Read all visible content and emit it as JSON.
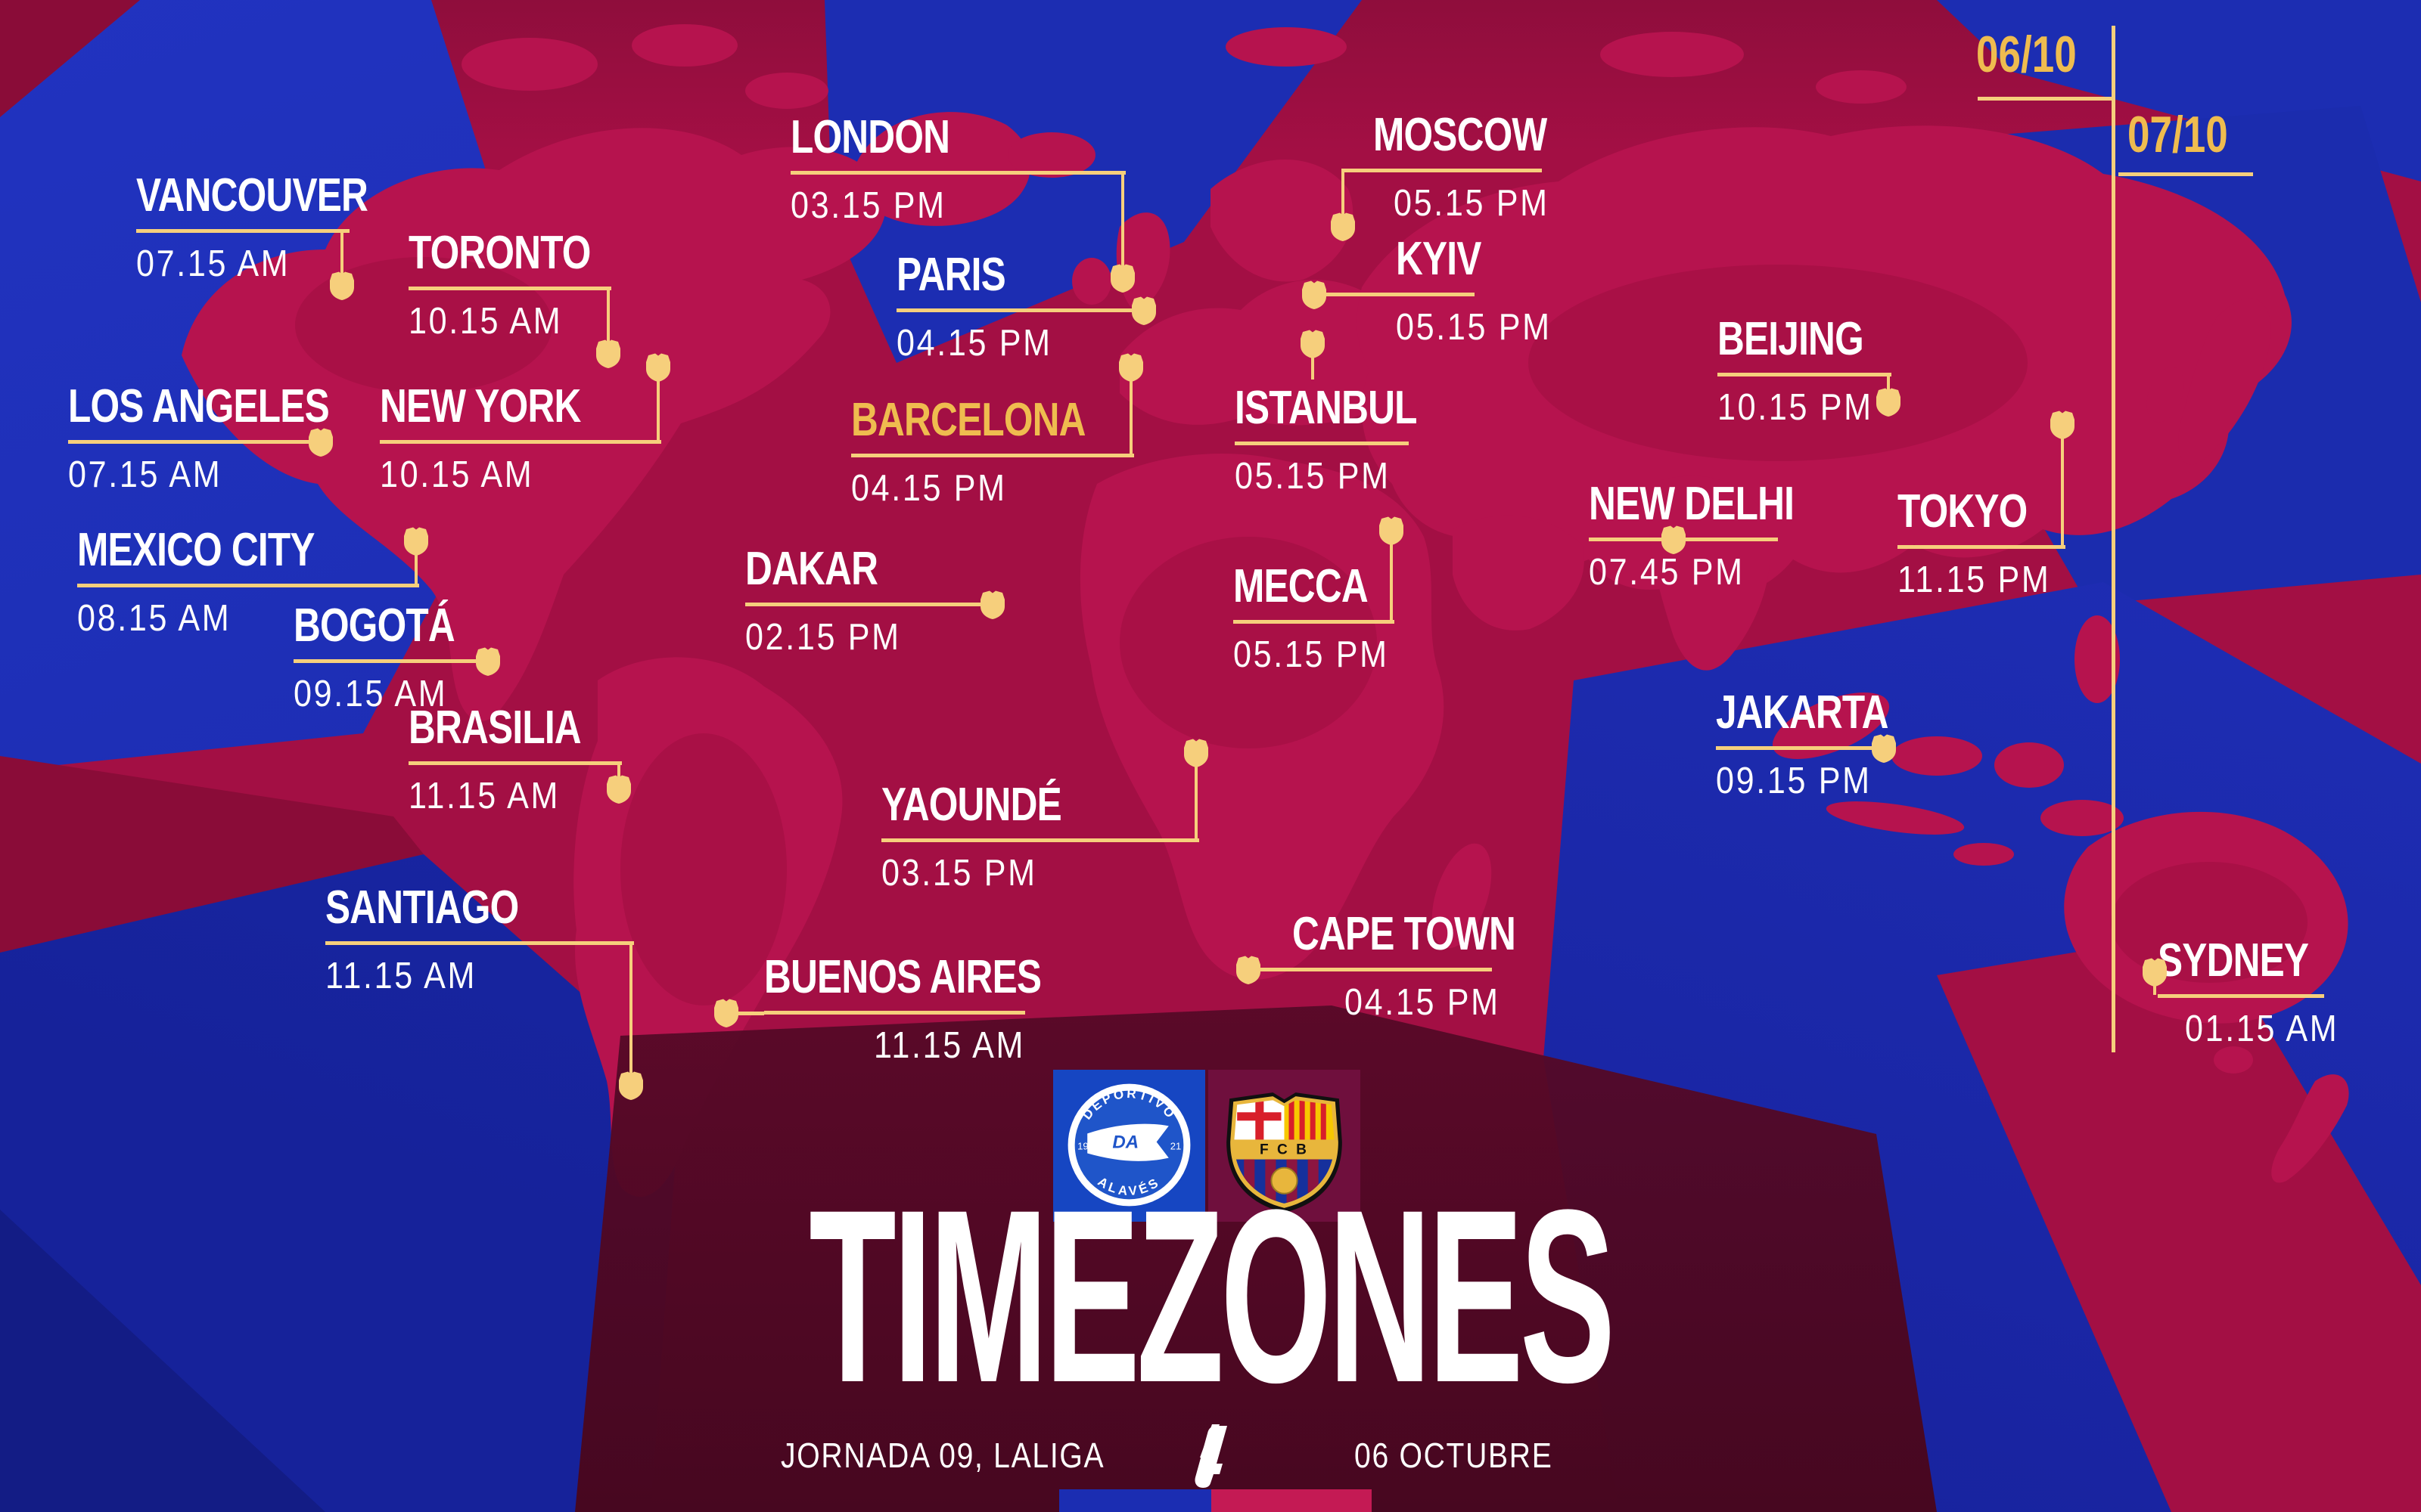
{
  "title": "TIMEZONES",
  "footer": {
    "left": "JORNADA 09, LALIGA",
    "right": "06 OCTUBRE"
  },
  "date_markers": [
    {
      "label": "06/10"
    },
    {
      "label": "07/10"
    }
  ],
  "clubs": {
    "home": {
      "name": "Deportivo Alavés",
      "crest_top": "DEPORTIVO",
      "crest_bottom": "ALAVÉS",
      "crest_left": "19",
      "crest_right": "21",
      "monogram": "DA"
    },
    "away": {
      "name": "FC Barcelona",
      "crest_band": "F C B"
    }
  },
  "colors": {
    "background_blue": "#1c2db2",
    "background_crimson": "#a30f44",
    "map_land": "#b6134e",
    "dark_maroon": "#8a0c38",
    "accent_gold_line": "#f6cf7c",
    "gold_text": "#efbc4f",
    "white": "#ffffff",
    "strip_blue": "#1b2db2",
    "strip_red": "#c41a54"
  },
  "cities": [
    {
      "id": "vancouver",
      "name": "VANCOUVER",
      "time": "07.15 AM",
      "highlight": false
    },
    {
      "id": "toronto",
      "name": "TORONTO",
      "time": "10.15 AM",
      "highlight": false
    },
    {
      "id": "los-angeles",
      "name": "LOS ANGELES",
      "time": "07.15 AM",
      "highlight": false
    },
    {
      "id": "new-york",
      "name": "NEW YORK",
      "time": "10.15 AM",
      "highlight": false
    },
    {
      "id": "mexico-city",
      "name": "MEXICO CITY",
      "time": "08.15 AM",
      "highlight": false
    },
    {
      "id": "bogota",
      "name": "BOGOTÁ",
      "time": "09.15 AM",
      "highlight": false
    },
    {
      "id": "brasilia",
      "name": "BRASILIA",
      "time": "11.15 AM",
      "highlight": false
    },
    {
      "id": "santiago",
      "name": "SANTIAGO",
      "time": "11.15 AM",
      "highlight": false
    },
    {
      "id": "buenos-aires",
      "name": "BUENOS AIRES",
      "time": "11.15 AM",
      "highlight": false
    },
    {
      "id": "london",
      "name": "LONDON",
      "time": "03.15 PM",
      "highlight": false
    },
    {
      "id": "paris",
      "name": "PARIS",
      "time": "04.15 PM",
      "highlight": false
    },
    {
      "id": "barcelona",
      "name": "BARCELONA",
      "time": "04.15 PM",
      "highlight": true
    },
    {
      "id": "dakar",
      "name": "DAKAR",
      "time": "02.15 PM",
      "highlight": false
    },
    {
      "id": "yaounde",
      "name": "YAOUNDÉ",
      "time": "03.15 PM",
      "highlight": false
    },
    {
      "id": "mecca",
      "name": "MECCA",
      "time": "05.15 PM",
      "highlight": false
    },
    {
      "id": "istanbul",
      "name": "ISTANBUL",
      "time": "05.15 PM",
      "highlight": false
    },
    {
      "id": "kyiv",
      "name": "KYIV",
      "time": "05.15 PM",
      "highlight": false
    },
    {
      "id": "moscow",
      "name": "MOSCOW",
      "time": "05.15 PM",
      "highlight": false
    },
    {
      "id": "beijing",
      "name": "BEIJING",
      "time": "10.15 PM",
      "highlight": false
    },
    {
      "id": "new-delhi",
      "name": "NEW DELHI",
      "time": "07.45 PM",
      "highlight": false
    },
    {
      "id": "tokyo",
      "name": "TOKYO",
      "time": "11.15 PM",
      "highlight": false
    },
    {
      "id": "jakarta",
      "name": "JAKARTA",
      "time": "09.15 PM",
      "highlight": false
    },
    {
      "id": "sydney",
      "name": "SYDNEY",
      "time": "01.15 AM",
      "highlight": false
    },
    {
      "id": "cape-town",
      "name": "CAPE TOWN",
      "time": "04.15 PM",
      "highlight": false
    }
  ]
}
